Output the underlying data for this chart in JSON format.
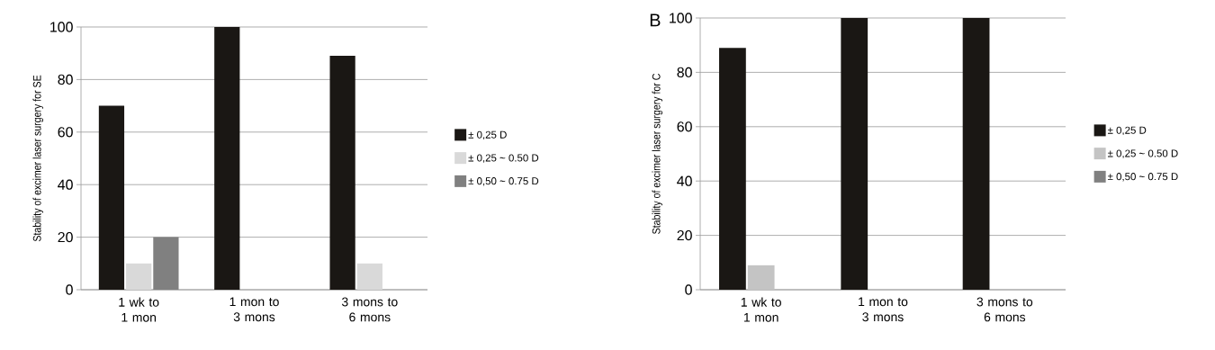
{
  "chart_data": [
    {
      "type": "bar",
      "ylabel": "Stability of excimer laser surgery for SE",
      "categories": [
        "1 wk to 1 mon",
        "1 mon to 3 mons",
        "3 mons to 6 mons"
      ],
      "ylim": [
        0,
        100
      ],
      "yticks": [
        0,
        20,
        40,
        60,
        80,
        100
      ],
      "grid": "y",
      "legend": "right",
      "series": [
        {
          "name": "± 0,25 D",
          "color": "#1a1714",
          "values": [
            70,
            100,
            89
          ]
        },
        {
          "name": "± 0,25 ~ 0.50 D",
          "color": "#d9d9d9",
          "values": [
            10,
            0,
            10
          ]
        },
        {
          "name": "± 0,50 ~ 0.75 D",
          "color": "#808080",
          "values": [
            20,
            0,
            0
          ]
        }
      ]
    },
    {
      "type": "bar",
      "title": "B",
      "ylabel": "Stability of excimer laser surgery for C",
      "categories": [
        "1 wk to 1 mon",
        "1 mon to 3 mons",
        "3 mons to 6 mons"
      ],
      "ylim": [
        0,
        100
      ],
      "yticks": [
        0,
        20,
        40,
        60,
        80,
        100
      ],
      "grid": "y",
      "legend": "right",
      "series": [
        {
          "name": "± 0,25 D",
          "color": "#1a1714",
          "values": [
            89,
            100,
            100
          ]
        },
        {
          "name": "± 0,25 ~ 0.50 D",
          "color": "#c4c4c4",
          "values": [
            9,
            0,
            0
          ]
        },
        {
          "name": "± 0,50 ~ 0.75 D",
          "color": "#808080",
          "values": [
            0,
            0,
            0
          ]
        }
      ]
    }
  ]
}
